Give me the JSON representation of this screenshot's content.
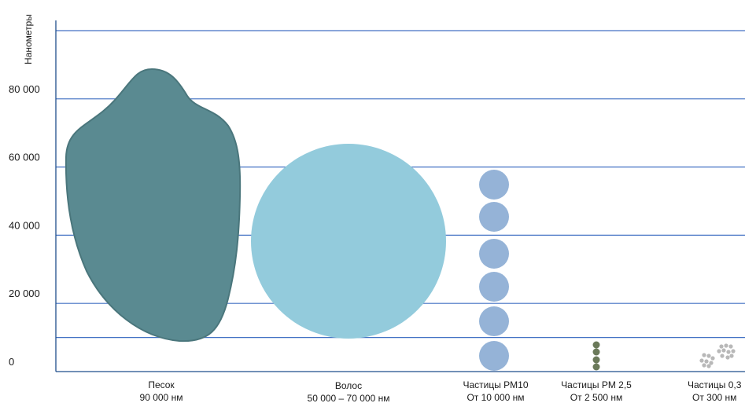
{
  "chart_data": {
    "type": "other",
    "title": "",
    "ylabel": "Нанометры",
    "xlabel": "",
    "ylim": [
      0,
      100000
    ],
    "y_ticks": [
      {
        "value": 0,
        "label": "0"
      },
      {
        "value": 20000,
        "label": "20 000"
      },
      {
        "value": 40000,
        "label": "40 000"
      },
      {
        "value": 60000,
        "label": "60 000"
      },
      {
        "value": 80000,
        "label": "80 000"
      }
    ],
    "gridlines": [
      10000,
      20000,
      40000,
      60000,
      80000,
      100000
    ],
    "grid": true,
    "categories": [
      {
        "name": "Песок",
        "size_label": "90 000 нм",
        "size_nm": 90000,
        "color": "#5a8a91",
        "icon": "sand-grain-shape"
      },
      {
        "name": "Волос",
        "size_label": "50 000 – 70 000 нм",
        "size_nm": [
          50000,
          70000
        ],
        "color": "#93cbdc",
        "icon": "hair-cross-section-circle"
      },
      {
        "name": "Частицы PM10",
        "size_label": "От 10 000 нм",
        "size_nm": 10000,
        "color": "#95b3d7",
        "icon": "pm10-particle-stack"
      },
      {
        "name": "Частицы PM 2,5",
        "size_label": "От 2 500 нм",
        "size_nm": 2500,
        "color": "#6b7a5a",
        "icon": "pm25-particle-stack"
      },
      {
        "name": "Частицы 0,3",
        "size_label": "От 300 нм",
        "size_nm": 300,
        "color": "#b8b8b8",
        "icon": "fine-particle-clusters"
      }
    ]
  }
}
